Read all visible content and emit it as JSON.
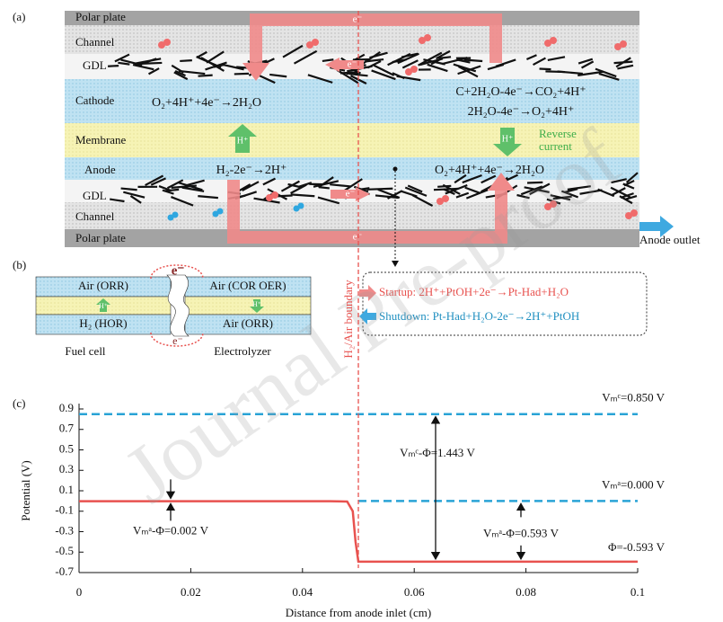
{
  "watermark": "Journal Pre-proof",
  "panel_a": {
    "label": "(a)",
    "layers": {
      "polar_plate_top": "Polar plate",
      "channel_top": "Channel",
      "gdl_top": "GDL",
      "cathode": "Cathode",
      "membrane": "Membrane",
      "anode": "Anode",
      "gdl_bottom": "GDL",
      "channel_bottom": "Channel",
      "polar_plate_bottom": "Polar plate"
    },
    "electron": "e⁻",
    "proton": "H⁺",
    "reactions": {
      "cathode_left": "O₂+4H⁺+4e⁻→2H₂O",
      "cathode_right_1": "C+2H₂O-4e⁻→CO₂+4H⁺",
      "cathode_right_2": "2H₂O-4e⁻→O₂+4H⁺",
      "anode_left": "H₂-2e⁻→2H⁺",
      "anode_right": "O₂+4H⁺+4e⁻→2H₂O"
    },
    "reverse_current": [
      "Reverse",
      "current"
    ],
    "anode_outlet": "Anode outlet"
  },
  "panel_b": {
    "label": "(b)",
    "fuel_cell": {
      "top": "Air (ORR)",
      "bottom": "H₂ (HOR)",
      "caption": "Fuel cell"
    },
    "electrolyzer": {
      "top": "Air (COR OER)",
      "bottom": "Air (ORR)",
      "caption": "Electrolyzer"
    },
    "proton": "H⁺",
    "electron": "e⁻",
    "startup": "Startup: 2H⁺+PtOH+2e⁻→Pt-Had+H₂O",
    "shutdown": "Shutdown: Pt-Had+H₂O-2e⁻→2H⁺+PtOH"
  },
  "chart_data": {
    "type": "line",
    "panel_label": "(c)",
    "xlabel": "Distance from anode inlet (cm)",
    "ylabel": "Potential (V)",
    "x": [
      0,
      0.045,
      0.048,
      0.049,
      0.0495,
      0.05,
      0.1
    ],
    "series": [
      {
        "color": "#e8524f",
        "values": [
          -0.002,
          -0.002,
          -0.005,
          -0.1,
          -0.4,
          -0.593,
          -0.593
        ]
      }
    ],
    "xlim": [
      0,
      0.1
    ],
    "xticks": [
      0,
      0.02,
      0.04,
      0.06,
      0.08,
      0.1
    ],
    "ylim": [
      -0.7,
      0.9
    ],
    "yticks": [
      0.9,
      0.7,
      0.5,
      0.3,
      0.1,
      -0.1,
      -0.3,
      -0.5,
      -0.7
    ],
    "hlines": [
      {
        "y": 0.85,
        "x": [
          0,
          0.1
        ],
        "label": "Vₘᶜ=0.850 V",
        "color": "#29a3d6"
      },
      {
        "y": 0,
        "x": [
          0.05,
          0.1
        ],
        "label": "Vₘᵃ=0.000 V",
        "color": "#29a3d6"
      }
    ],
    "vline": {
      "x": 0.05,
      "label": "H₂/Air boundary",
      "color": "#e8524f"
    },
    "annotations": [
      "Vₘᵃ-Φ=0.002 V",
      "Vₘᶜ-Φ=1.443 V",
      "Vₘᵃ-Φ=0.593 V",
      "Φ=-0.593 V"
    ]
  }
}
